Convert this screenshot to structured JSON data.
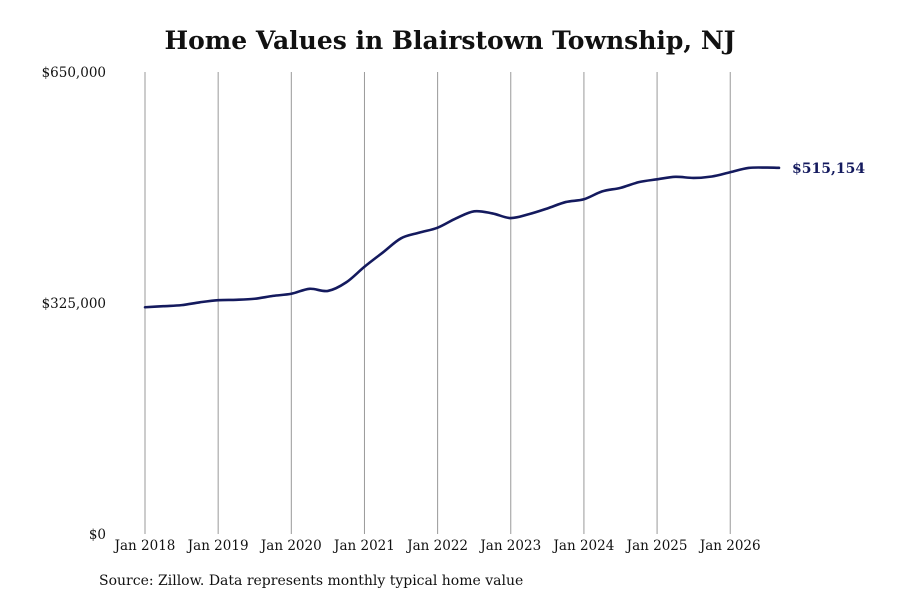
{
  "chart_data": {
    "type": "line",
    "title": "Home Values in Blairstown Township, NJ",
    "xlabel": "",
    "ylabel": "",
    "ylim": [
      0,
      650000
    ],
    "xlim": [
      "2018-01",
      "2026-09"
    ],
    "y_ticks": [
      {
        "value": 0,
        "label": "$0"
      },
      {
        "value": 325000,
        "label": "$325,000"
      },
      {
        "value": 650000,
        "label": "$650,000"
      }
    ],
    "x_ticks": [
      {
        "value": "2018-01",
        "label": "Jan 2018"
      },
      {
        "value": "2019-01",
        "label": "Jan 2019"
      },
      {
        "value": "2020-01",
        "label": "Jan 2020"
      },
      {
        "value": "2021-01",
        "label": "Jan 2021"
      },
      {
        "value": "2022-01",
        "label": "Jan 2022"
      },
      {
        "value": "2023-01",
        "label": "Jan 2023"
      },
      {
        "value": "2024-01",
        "label": "Jan 2024"
      },
      {
        "value": "2025-01",
        "label": "Jan 2025"
      },
      {
        "value": "2026-01",
        "label": "Jan 2026"
      }
    ],
    "grid": {
      "vertical": true,
      "horizontal": false
    },
    "line_color": "#141a5e",
    "series": [
      {
        "x": [
          "2018-01",
          "2018-04",
          "2018-07",
          "2018-10",
          "2019-01",
          "2019-04",
          "2019-07",
          "2019-10",
          "2020-01",
          "2020-04",
          "2020-07",
          "2020-10",
          "2021-01",
          "2021-04",
          "2021-07",
          "2021-10",
          "2022-01",
          "2022-04",
          "2022-07",
          "2022-10",
          "2023-01",
          "2023-04",
          "2023-07",
          "2023-10",
          "2024-01",
          "2024-04",
          "2024-07",
          "2024-10",
          "2025-01",
          "2025-04",
          "2025-07",
          "2025-10",
          "2026-01",
          "2026-04",
          "2026-07",
          "2026-09"
        ],
        "y": [
          319000,
          320500,
          322000,
          326000,
          329000,
          329500,
          331000,
          335000,
          338000,
          345000,
          342000,
          354000,
          376000,
          396000,
          416000,
          424000,
          431000,
          444000,
          454000,
          451000,
          444500,
          450000,
          458000,
          467000,
          471000,
          482000,
          487000,
          495000,
          499000,
          502500,
          501000,
          503000,
          509000,
          515000,
          515500,
          515154
        ]
      }
    ],
    "annotations": [
      {
        "text": "$515,154",
        "x": "2026-09",
        "y": 515154,
        "color": "#141a5e"
      }
    ]
  },
  "footer": {
    "source": "Source: Zillow. Data represents monthly typical home value"
  }
}
